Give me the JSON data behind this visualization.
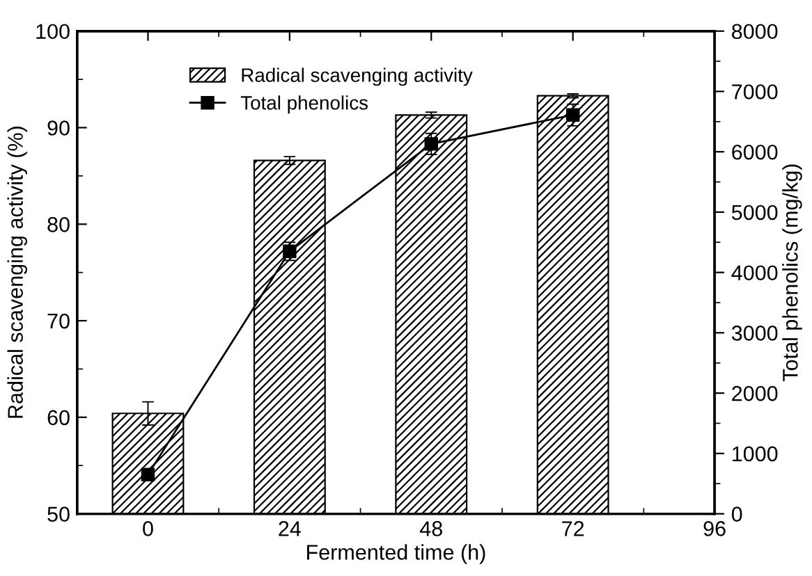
{
  "chart_data": {
    "type": "bar",
    "xlabel": "Fermented time (h)",
    "ylabel": "Radical scavenging activity (%)",
    "y2label": "Total phenolics (mg/kg)",
    "x": [
      0,
      24,
      48,
      72
    ],
    "series": [
      {
        "name": "Radical scavenging activity",
        "color": "#000000",
        "values": [
          60.4,
          86.6,
          91.3,
          93.3
        ],
        "errors": [
          1.2,
          0.4,
          0.3,
          0.2
        ]
      },
      {
        "name": "Total phenolics",
        "type": "line",
        "axis": "y2",
        "color": "#000000",
        "marker": "square",
        "line_style": "solid",
        "values": [
          650,
          4350,
          6130,
          6610
        ],
        "errors": [
          50,
          150,
          175,
          180
        ]
      }
    ],
    "xlim": [
      -12,
      96
    ],
    "xticks": [
      0,
      24,
      48,
      72,
      96
    ],
    "ylim": [
      50,
      100
    ],
    "yticks": [
      50,
      60,
      70,
      80,
      90,
      100
    ],
    "y2lim": [
      0,
      8000
    ],
    "y2ticks": [
      0,
      1000,
      2000,
      3000,
      4000,
      5000,
      6000,
      7000,
      8000
    ],
    "legend": "top left",
    "grid": false
  }
}
